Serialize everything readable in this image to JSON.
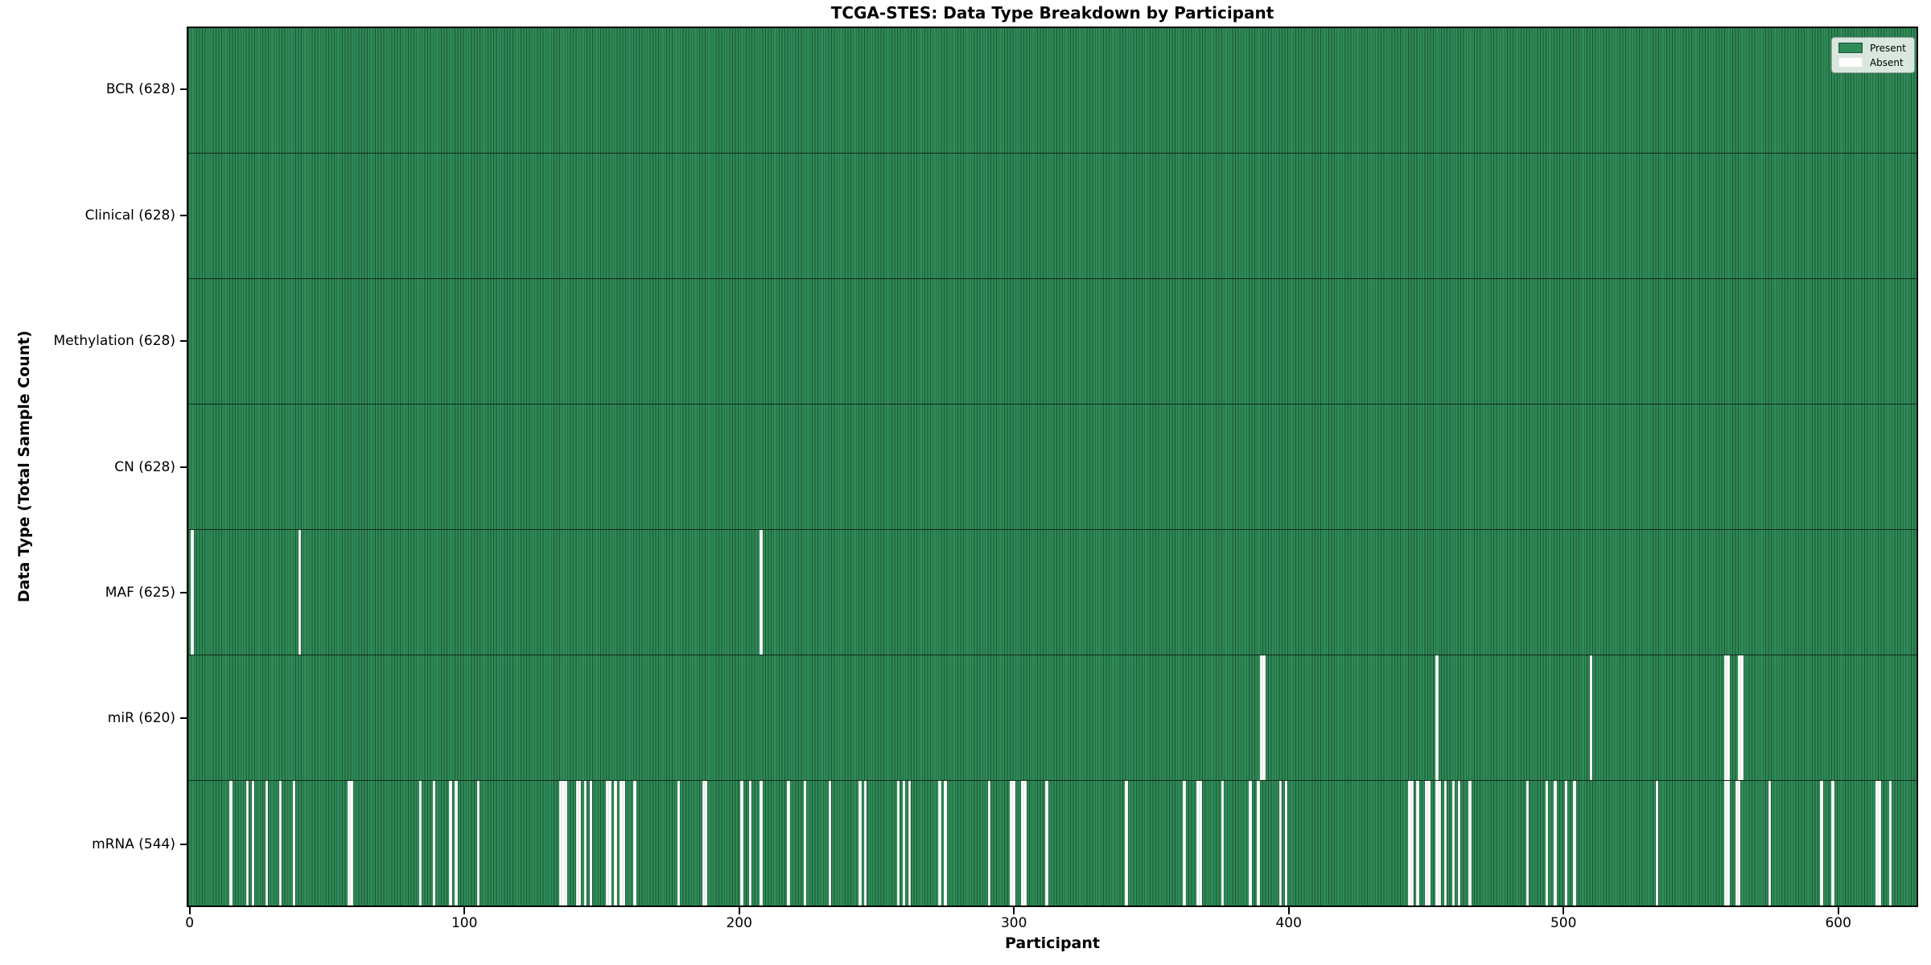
{
  "title": "TCGA-STES: Data Type Breakdown by Participant",
  "xlabel": "Participant",
  "ylabel": "Data Type (Total Sample Count)",
  "legend": {
    "present_label": "Present",
    "absent_label": "Absent"
  },
  "colors": {
    "present": "#2e8b57",
    "absent": "#ffffff",
    "bar_edge": "#1c5235",
    "row_separator": "#10271a",
    "spine": "#000000"
  },
  "chart_data": {
    "type": "heatmap",
    "title": "TCGA-STES: Data Type Breakdown by Participant",
    "xlabel": "Participant",
    "ylabel": "Data Type (Total Sample Count)",
    "legend_entries": [
      "Present",
      "Absent"
    ],
    "legend_position": "upper right",
    "grid": false,
    "n_participants": 628,
    "xlim": [
      -0.5,
      628.5
    ],
    "x_ticks": [
      0,
      100,
      200,
      300,
      400,
      500,
      600
    ],
    "rows": [
      {
        "label": "BCR (628)",
        "name": "BCR",
        "present_count": 628,
        "absent_participants": []
      },
      {
        "label": "Clinical (628)",
        "name": "Clinical",
        "present_count": 628,
        "absent_participants": []
      },
      {
        "label": "Methylation (628)",
        "name": "Methylation",
        "present_count": 628,
        "absent_participants": []
      },
      {
        "label": "CN (628)",
        "name": "CN",
        "present_count": 628,
        "absent_participants": []
      },
      {
        "label": "MAF (625)",
        "name": "MAF",
        "present_count": 625,
        "absent_participants": [
          1,
          40,
          208
        ]
      },
      {
        "label": "miR (620)",
        "name": "miR",
        "present_count": 620,
        "absent_participants": [
          390,
          391,
          454,
          510,
          559,
          560,
          564,
          565
        ]
      },
      {
        "label": "mRNA (544)",
        "name": "mRNA",
        "present_count": 544,
        "absent_participants": [
          15,
          21,
          23,
          28,
          33,
          38,
          58,
          59,
          84,
          89,
          95,
          97,
          105,
          135,
          136,
          137,
          141,
          142,
          144,
          146,
          152,
          153,
          155,
          157,
          158,
          162,
          178,
          187,
          188,
          201,
          204,
          208,
          218,
          224,
          233,
          244,
          246,
          258,
          260,
          262,
          273,
          275,
          291,
          299,
          300,
          303,
          304,
          312,
          341,
          362,
          367,
          368,
          376,
          386,
          389,
          397,
          399,
          444,
          445,
          447,
          450,
          451,
          454,
          455,
          457,
          460,
          462,
          466,
          487,
          494,
          497,
          501,
          504,
          534,
          559,
          560,
          563,
          564,
          575,
          594,
          598,
          614,
          615,
          619
        ]
      }
    ]
  }
}
